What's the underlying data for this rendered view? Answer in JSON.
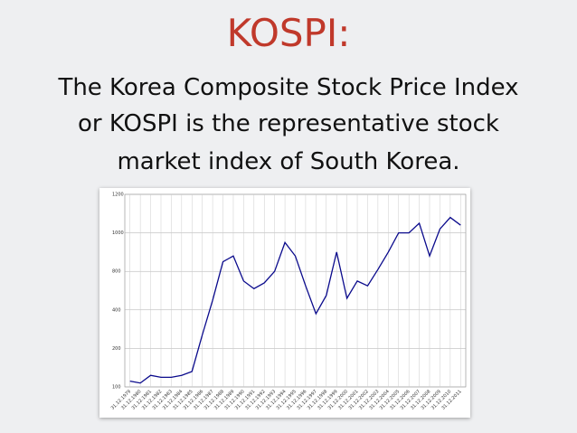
{
  "slide": {
    "title": "KOSPI:",
    "text_lines": [
      "The Korea Composite Stock Price Index",
      "or KOSPI is the representative stock",
      "market index of South Korea."
    ]
  },
  "chart_data": {
    "type": "line",
    "categories": [
      "31.12.1979",
      "31.12.1980",
      "31.12.1981",
      "31.12.1982",
      "31.12.1983",
      "31.12.1984",
      "31.12.1985",
      "31.12.1986",
      "31.12.1987",
      "31.12.1988",
      "31.12.1989",
      "31.12.1990",
      "31.12.1991",
      "31.12.1992",
      "31.12.1993",
      "31.12.1994",
      "31.12.1995",
      "31.12.1996",
      "31.12.1997",
      "31.12.1998",
      "31.12.1999",
      "31.12.2000",
      "31.12.2001",
      "31.12.2002",
      "31.12.2003",
      "31.12.2004",
      "31.12.2005",
      "31.12.2006",
      "31.12.2007",
      "31.12.2008",
      "31.12.2009",
      "31.12.2010",
      "31.12.2011"
    ],
    "series": [
      {
        "color": "#0a0a8c",
        "values": [
          115,
          110,
          130,
          125,
          125,
          130,
          140,
          270,
          500,
          850,
          880,
          700,
          620,
          680,
          800,
          950,
          880,
          650,
          380,
          550,
          900,
          520,
          700,
          650,
          810,
          900,
          1000,
          1000,
          1050,
          880,
          1020,
          1080,
          1040
        ]
      }
    ],
    "ylim": [
      100,
      1200
    ],
    "yticks": [
      100,
      200,
      400,
      800,
      1000,
      1200
    ],
    "grid": true
  }
}
